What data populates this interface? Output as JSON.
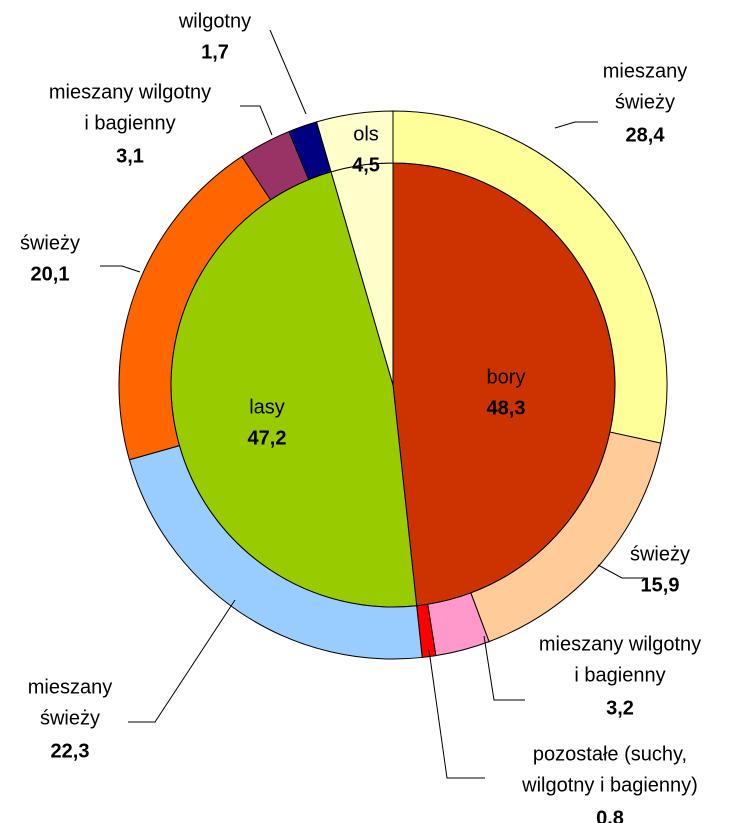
{
  "chart_data": {
    "type": "sunburst",
    "rings": [
      {
        "labels": [
          [
            "bory"
          ],
          [
            "lasy"
          ],
          [
            "ols"
          ]
        ],
        "values": [
          48.3,
          47.2,
          4.5
        ],
        "value_labels": [
          "48,3",
          "47,2",
          "4,5"
        ],
        "colors": [
          "#CC3300",
          "#99CC00",
          "#FFFFCC"
        ]
      },
      {
        "labels": [
          [
            "mieszany",
            "świeży"
          ],
          [
            "świeży"
          ],
          [
            "mieszany wilgotny",
            "i bagienny"
          ],
          [
            "pozostałe (suchy,",
            "wilgotny i bagienny)"
          ],
          [
            "mieszany",
            "świeży"
          ],
          [
            "świeży"
          ],
          [
            "mieszany wilgotny",
            "i bagienny"
          ],
          [
            "wilgotny"
          ],
          null
        ],
        "values": [
          28.4,
          15.9,
          3.2,
          0.8,
          22.3,
          20.1,
          3.1,
          1.7,
          4.5
        ],
        "value_labels": [
          "28,4",
          "15,9",
          "3,2",
          "0.8",
          "22,3",
          "20,1",
          "3,1",
          "1,7",
          null
        ],
        "colors": [
          "#FFFF99",
          "#FFCC99",
          "#FF99CC",
          "#FF0000",
          "#99CCFF",
          "#FF6600",
          "#993366",
          "#000080",
          "#FFFFCC"
        ]
      }
    ]
  }
}
